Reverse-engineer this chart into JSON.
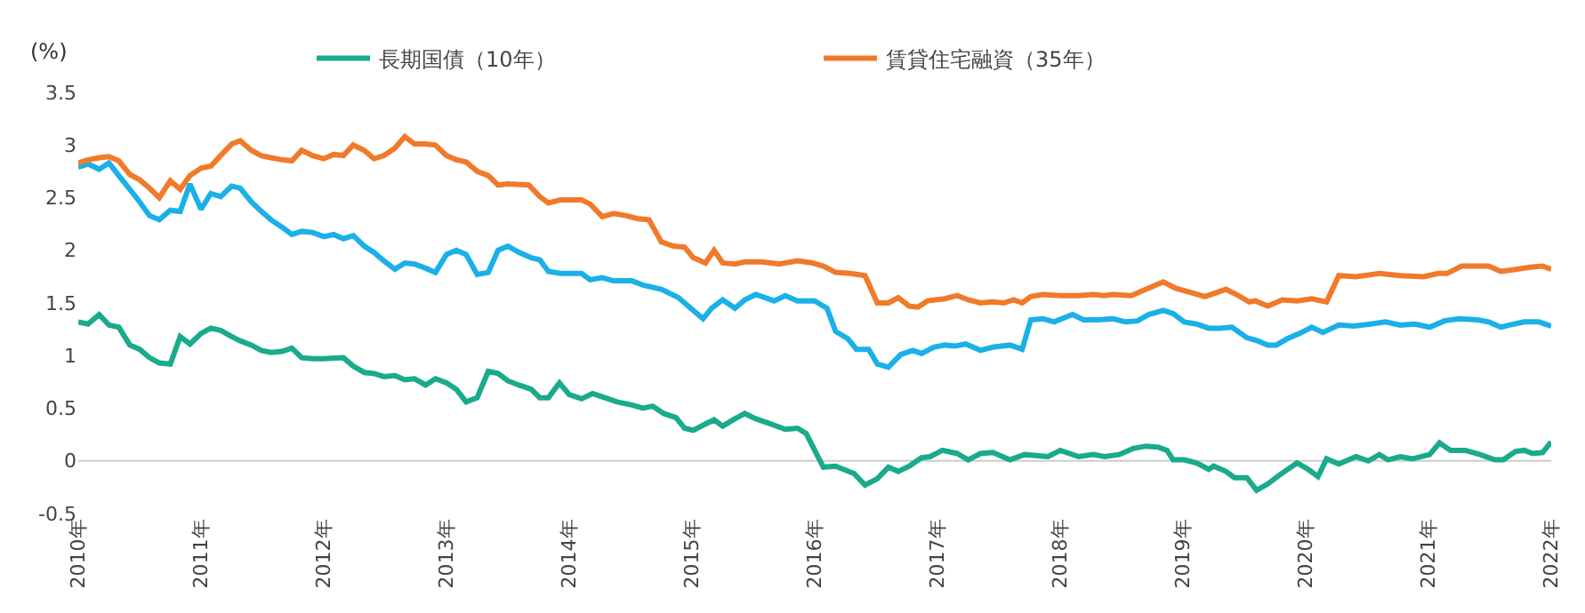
{
  "chart_data": {
    "type": "line",
    "ylabel": "(%)",
    "legend": "top",
    "grid": false,
    "xlim": [
      2010,
      2022
    ],
    "xticks": [
      {
        "value": 2010,
        "label": "2010年"
      },
      {
        "value": 2011,
        "label": "2011年"
      },
      {
        "value": 2012,
        "label": "2012年"
      },
      {
        "value": 2013,
        "label": "2013年"
      },
      {
        "value": 2014,
        "label": "2014年"
      },
      {
        "value": 2015,
        "label": "2015年"
      },
      {
        "value": 2016,
        "label": "2016年"
      },
      {
        "value": 2017,
        "label": "2017年"
      },
      {
        "value": 2018,
        "label": "2018年"
      },
      {
        "value": 2019,
        "label": "2019年"
      },
      {
        "value": 2020,
        "label": "2020年"
      },
      {
        "value": 2021,
        "label": "2021年"
      },
      {
        "value": 2022,
        "label": "2022年"
      }
    ],
    "ylim": [
      -0.5,
      3.5
    ],
    "yticks": [
      -0.5,
      0,
      0.5,
      1,
      1.5,
      2,
      2.5,
      3,
      3.5
    ],
    "ref_lines": [
      {
        "axis": "y",
        "value": 0,
        "color": "#cccccc"
      }
    ],
    "series": [
      {
        "name": "長期国債（10年）",
        "color": "#1aaa8c",
        "x": [
          2010.0,
          2010.08,
          2010.17,
          2010.25,
          2010.33,
          2010.42,
          2010.5,
          2010.58,
          2010.66,
          2010.75,
          2010.83,
          2010.91,
          2011.0,
          2011.08,
          2011.16,
          2011.25,
          2011.32,
          2011.41,
          2011.49,
          2011.57,
          2011.66,
          2011.74,
          2011.82,
          2011.91,
          2012.0,
          2012.16,
          2012.24,
          2012.33,
          2012.41,
          2012.49,
          2012.58,
          2012.66,
          2012.74,
          2012.83,
          2012.91,
          2013.0,
          2013.08,
          2013.16,
          2013.25,
          2013.34,
          2013.42,
          2013.5,
          2013.59,
          2013.69,
          2013.76,
          2013.83,
          2013.92,
          2014.0,
          2014.1,
          2014.19,
          2014.29,
          2014.39,
          2014.51,
          2014.6,
          2014.68,
          2014.77,
          2014.87,
          2014.94,
          2015.01,
          2015.11,
          2015.18,
          2015.25,
          2015.35,
          2015.43,
          2015.52,
          2015.62,
          2015.76,
          2015.86,
          2015.93,
          2016.0,
          2016.07,
          2016.17,
          2016.32,
          2016.41,
          2016.51,
          2016.6,
          2016.68,
          2016.77,
          2016.87,
          2016.94,
          2017.04,
          2017.16,
          2017.25,
          2017.35,
          2017.45,
          2017.59,
          2017.71,
          2017.9,
          2018.0,
          2018.15,
          2018.27,
          2018.36,
          2018.48,
          2018.6,
          2018.7,
          2018.8,
          2018.87,
          2018.92,
          2019.01,
          2019.11,
          2019.21,
          2019.25,
          2019.35,
          2019.42,
          2019.52,
          2019.6,
          2019.69,
          2019.78,
          2019.93,
          2020.02,
          2020.1,
          2020.17,
          2020.27,
          2020.41,
          2020.51,
          2020.6,
          2020.67,
          2020.77,
          2020.87,
          2021.01,
          2021.09,
          2021.18,
          2021.3,
          2021.42,
          2021.54,
          2021.61,
          2021.71,
          2021.78,
          2021.85,
          2021.93,
          2022.0
        ],
        "values": [
          1.32,
          1.3,
          1.39,
          1.29,
          1.27,
          1.1,
          1.06,
          0.98,
          0.93,
          0.92,
          1.18,
          1.11,
          1.21,
          1.26,
          1.24,
          1.18,
          1.14,
          1.1,
          1.05,
          1.03,
          1.04,
          1.07,
          0.98,
          0.97,
          0.97,
          0.98,
          0.9,
          0.84,
          0.83,
          0.8,
          0.81,
          0.77,
          0.78,
          0.72,
          0.78,
          0.74,
          0.68,
          0.56,
          0.6,
          0.85,
          0.83,
          0.76,
          0.72,
          0.68,
          0.6,
          0.6,
          0.74,
          0.63,
          0.59,
          0.64,
          0.6,
          0.56,
          0.53,
          0.5,
          0.52,
          0.45,
          0.41,
          0.31,
          0.29,
          0.35,
          0.39,
          0.33,
          0.4,
          0.45,
          0.4,
          0.36,
          0.3,
          0.31,
          0.26,
          0.1,
          -0.06,
          -0.05,
          -0.12,
          -0.23,
          -0.17,
          -0.06,
          -0.1,
          -0.05,
          0.03,
          0.04,
          0.1,
          0.07,
          0.01,
          0.07,
          0.08,
          0.01,
          0.06,
          0.04,
          0.1,
          0.04,
          0.06,
          0.04,
          0.06,
          0.12,
          0.14,
          0.13,
          0.1,
          0.01,
          0.01,
          -0.02,
          -0.08,
          -0.05,
          -0.1,
          -0.16,
          -0.16,
          -0.28,
          -0.22,
          -0.14,
          -0.02,
          -0.08,
          -0.15,
          0.02,
          -0.03,
          0.04,
          0.0,
          0.06,
          0.01,
          0.04,
          0.02,
          0.06,
          0.17,
          0.1,
          0.1,
          0.06,
          0.01,
          0.01,
          0.09,
          0.1,
          0.07,
          0.08,
          0.18
        ]
      },
      {
        "color": "#1ab0e8",
        "x": [
          2010.0,
          2010.08,
          2010.17,
          2010.25,
          2010.33,
          2010.42,
          2010.5,
          2010.58,
          2010.66,
          2010.75,
          2010.83,
          2010.91,
          2011.0,
          2011.08,
          2011.16,
          2011.25,
          2011.32,
          2011.41,
          2011.49,
          2011.57,
          2011.66,
          2011.74,
          2011.82,
          2011.91,
          2012.0,
          2012.08,
          2012.16,
          2012.24,
          2012.33,
          2012.41,
          2012.49,
          2012.58,
          2012.66,
          2012.74,
          2012.83,
          2012.91,
          2013.0,
          2013.08,
          2013.16,
          2013.25,
          2013.34,
          2013.42,
          2013.5,
          2013.59,
          2013.69,
          2013.76,
          2013.83,
          2013.93,
          2014.1,
          2014.17,
          2014.27,
          2014.36,
          2014.51,
          2014.6,
          2014.75,
          2014.89,
          2014.99,
          2015.09,
          2015.16,
          2015.25,
          2015.35,
          2015.43,
          2015.52,
          2015.67,
          2015.76,
          2015.86,
          2016.0,
          2016.1,
          2016.17,
          2016.27,
          2016.34,
          2016.44,
          2016.51,
          2016.6,
          2016.7,
          2016.8,
          2016.87,
          2016.97,
          2017.06,
          2017.14,
          2017.23,
          2017.35,
          2017.45,
          2017.59,
          2017.69,
          2017.76,
          2017.86,
          2017.95,
          2018.1,
          2018.19,
          2018.31,
          2018.43,
          2018.53,
          2018.63,
          2018.72,
          2018.84,
          2018.92,
          2019.01,
          2019.11,
          2019.21,
          2019.3,
          2019.4,
          2019.52,
          2019.61,
          2019.69,
          2019.76,
          2019.85,
          2019.95,
          2020.05,
          2020.14,
          2020.27,
          2020.39,
          2020.53,
          2020.65,
          2020.77,
          2020.89,
          2021.01,
          2021.13,
          2021.25,
          2021.4,
          2021.49,
          2021.59,
          2021.66,
          2021.78,
          2021.9,
          2022.0
        ],
        "values": [
          2.79,
          2.82,
          2.77,
          2.83,
          2.71,
          2.58,
          2.46,
          2.33,
          2.29,
          2.38,
          2.37,
          2.63,
          2.39,
          2.54,
          2.51,
          2.61,
          2.59,
          2.46,
          2.37,
          2.29,
          2.22,
          2.15,
          2.18,
          2.17,
          2.13,
          2.15,
          2.11,
          2.14,
          2.04,
          1.98,
          1.9,
          1.82,
          1.88,
          1.87,
          1.83,
          1.79,
          1.96,
          2.0,
          1.96,
          1.77,
          1.79,
          2.0,
          2.04,
          1.98,
          1.93,
          1.91,
          1.8,
          1.78,
          1.78,
          1.72,
          1.74,
          1.71,
          1.71,
          1.67,
          1.63,
          1.55,
          1.45,
          1.35,
          1.45,
          1.53,
          1.45,
          1.53,
          1.58,
          1.52,
          1.57,
          1.52,
          1.52,
          1.45,
          1.23,
          1.16,
          1.06,
          1.06,
          0.92,
          0.89,
          1.01,
          1.05,
          1.02,
          1.08,
          1.1,
          1.09,
          1.11,
          1.05,
          1.08,
          1.1,
          1.06,
          1.34,
          1.35,
          1.32,
          1.39,
          1.34,
          1.34,
          1.35,
          1.32,
          1.33,
          1.39,
          1.43,
          1.4,
          1.32,
          1.3,
          1.26,
          1.26,
          1.27,
          1.17,
          1.14,
          1.1,
          1.1,
          1.16,
          1.21,
          1.27,
          1.22,
          1.29,
          1.28,
          1.3,
          1.32,
          1.29,
          1.3,
          1.27,
          1.33,
          1.35,
          1.34,
          1.32,
          1.27,
          1.29,
          1.32,
          1.32,
          1.28
        ]
      },
      {
        "name": "賃貸住宅融資（35年）",
        "color": "#f07a2a",
        "x": [
          2010.0,
          2010.08,
          2010.17,
          2010.25,
          2010.33,
          2010.42,
          2010.5,
          2010.58,
          2010.66,
          2010.75,
          2010.83,
          2010.91,
          2011.0,
          2011.08,
          2011.16,
          2011.25,
          2011.32,
          2011.41,
          2011.49,
          2011.57,
          2011.66,
          2011.74,
          2011.82,
          2011.91,
          2012.0,
          2012.08,
          2012.16,
          2012.24,
          2012.33,
          2012.41,
          2012.49,
          2012.58,
          2012.66,
          2012.74,
          2012.83,
          2012.91,
          2013.0,
          2013.08,
          2013.16,
          2013.25,
          2013.34,
          2013.42,
          2013.5,
          2013.67,
          2013.76,
          2013.83,
          2013.93,
          2014.1,
          2014.17,
          2014.27,
          2014.36,
          2014.46,
          2014.56,
          2014.65,
          2014.75,
          2014.85,
          2014.94,
          2015.01,
          2015.11,
          2015.18,
          2015.25,
          2015.35,
          2015.43,
          2015.57,
          2015.71,
          2015.86,
          2015.98,
          2016.07,
          2016.17,
          2016.29,
          2016.41,
          2016.51,
          2016.6,
          2016.68,
          2016.77,
          2016.84,
          2016.92,
          2017.06,
          2017.16,
          2017.25,
          2017.35,
          2017.45,
          2017.54,
          2017.62,
          2017.69,
          2017.76,
          2017.86,
          2018.0,
          2018.15,
          2018.27,
          2018.36,
          2018.43,
          2018.58,
          2018.7,
          2018.84,
          2018.94,
          2019.06,
          2019.18,
          2019.35,
          2019.45,
          2019.54,
          2019.59,
          2019.69,
          2019.81,
          2019.93,
          2020.05,
          2020.17,
          2020.27,
          2020.41,
          2020.6,
          2020.77,
          2020.96,
          2021.08,
          2021.15,
          2021.27,
          2021.49,
          2021.59,
          2021.66,
          2021.83,
          2021.93,
          2022.0
        ],
        "values": [
          2.83,
          2.86,
          2.88,
          2.89,
          2.85,
          2.72,
          2.67,
          2.59,
          2.5,
          2.66,
          2.58,
          2.71,
          2.78,
          2.8,
          2.9,
          3.01,
          3.04,
          2.95,
          2.9,
          2.88,
          2.86,
          2.85,
          2.95,
          2.9,
          2.87,
          2.91,
          2.9,
          3.0,
          2.95,
          2.87,
          2.9,
          2.97,
          3.08,
          3.01,
          3.01,
          3.0,
          2.9,
          2.86,
          2.84,
          2.75,
          2.71,
          2.62,
          2.63,
          2.62,
          2.51,
          2.45,
          2.48,
          2.48,
          2.44,
          2.32,
          2.35,
          2.33,
          2.3,
          2.29,
          2.08,
          2.04,
          2.03,
          1.93,
          1.88,
          2.0,
          1.88,
          1.87,
          1.89,
          1.89,
          1.87,
          1.9,
          1.88,
          1.85,
          1.79,
          1.78,
          1.76,
          1.5,
          1.5,
          1.55,
          1.47,
          1.46,
          1.52,
          1.54,
          1.57,
          1.53,
          1.5,
          1.51,
          1.5,
          1.53,
          1.5,
          1.56,
          1.58,
          1.57,
          1.57,
          1.58,
          1.57,
          1.58,
          1.57,
          1.63,
          1.7,
          1.64,
          1.6,
          1.56,
          1.63,
          1.57,
          1.51,
          1.52,
          1.47,
          1.53,
          1.52,
          1.54,
          1.51,
          1.76,
          1.75,
          1.78,
          1.76,
          1.75,
          1.78,
          1.78,
          1.85,
          1.85,
          1.8,
          1.81,
          1.84,
          1.85,
          1.82
        ]
      }
    ]
  }
}
